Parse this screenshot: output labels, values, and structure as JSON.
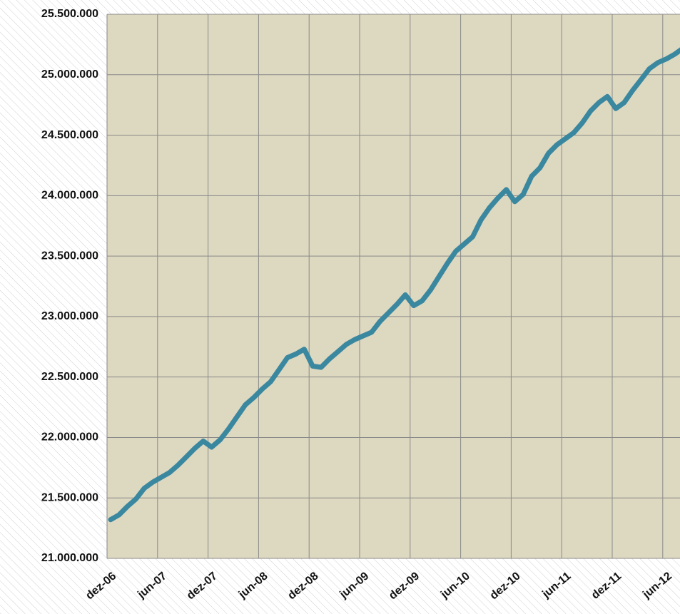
{
  "chart_data": {
    "type": "line",
    "categories": [
      "dez-06",
      null,
      null,
      null,
      null,
      null,
      "jun-07",
      null,
      null,
      null,
      null,
      null,
      "dez-07",
      null,
      null,
      null,
      null,
      null,
      "jun-08",
      null,
      null,
      null,
      null,
      null,
      "dez-08",
      null,
      null,
      null,
      null,
      null,
      "jun-09",
      null,
      null,
      null,
      null,
      null,
      "dez-09",
      null,
      null,
      null,
      null,
      null,
      "jun-10",
      null,
      null,
      null,
      null,
      null,
      "dez-10",
      null,
      null,
      null,
      null,
      null,
      "jun-11",
      null,
      null,
      null,
      null,
      null,
      "dez-11",
      null,
      null,
      null,
      null,
      null,
      "jun-12",
      null,
      null
    ],
    "values": [
      21320000,
      21360000,
      21430000,
      21490000,
      21580000,
      21630000,
      21670000,
      21710000,
      21770000,
      21840000,
      21910000,
      21970000,
      21920000,
      21980000,
      22070000,
      22170000,
      22270000,
      22330000,
      22400000,
      22460000,
      22560000,
      22660000,
      22690000,
      22730000,
      22590000,
      22580000,
      22650000,
      22710000,
      22770000,
      22810000,
      22840000,
      22870000,
      22960000,
      23030000,
      23100000,
      23180000,
      23090000,
      23130000,
      23220000,
      23330000,
      23440000,
      23540000,
      23600000,
      23660000,
      23800000,
      23900000,
      23980000,
      24050000,
      23950000,
      24010000,
      24160000,
      24230000,
      24350000,
      24420000,
      24470000,
      24520000,
      24600000,
      24700000,
      24770000,
      24820000,
      24720000,
      24770000,
      24870000,
      24960000,
      25050000,
      25100000,
      25130000,
      25170000,
      25220000
    ],
    "color": "#3a87a0",
    "ylim": [
      21000000,
      25500000
    ],
    "yticks": [
      {
        "value": 21000000,
        "label": "21.000.000"
      },
      {
        "value": 21500000,
        "label": "21.500.000"
      },
      {
        "value": 22000000,
        "label": "22.000.000"
      },
      {
        "value": 22500000,
        "label": "22.500.000"
      },
      {
        "value": 23000000,
        "label": "23.000.000"
      },
      {
        "value": 23500000,
        "label": "23.500.000"
      },
      {
        "value": 24000000,
        "label": "24.000.000"
      },
      {
        "value": 24500000,
        "label": "24.500.000"
      },
      {
        "value": 25000000,
        "label": "25.000.000"
      },
      {
        "value": 25500000,
        "label": "25.500.000"
      }
    ],
    "grid": true
  }
}
